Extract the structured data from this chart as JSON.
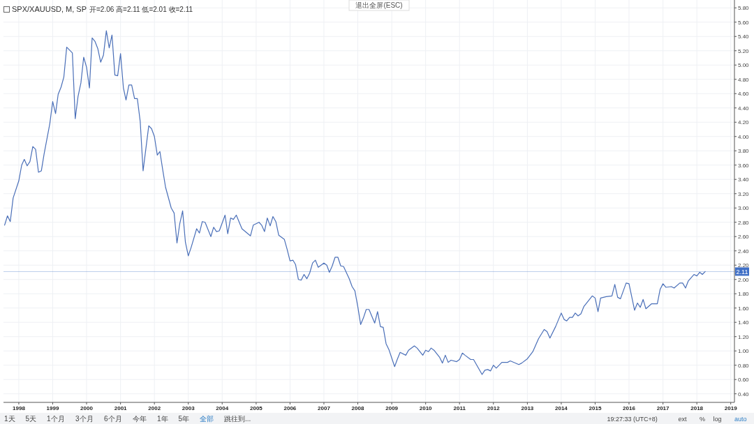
{
  "chart_data": {
    "type": "line",
    "title": "SPX/XAUUSD, M, SP",
    "subtitle": "开=2.06 高=2.11 低=2.01 收=2.11",
    "annotations": [
      "退出全屏(ESC)",
      "1天",
      "5天",
      "1个月",
      "3个月",
      "6个月",
      "今年",
      "1年",
      "5年",
      "全部",
      "跳往到...",
      "19:27:33 (UTC+8)",
      "ext",
      "%",
      "log",
      "auto"
    ],
    "series": [
      {
        "color": "#4a6fb8",
        "x": [
          "1997-08",
          "1997-09",
          "1997-10",
          "1997-11",
          "1998-01",
          "1998-02",
          "1998-03",
          "1998-04",
          "1998-05",
          "1998-06",
          "1998-07",
          "1998-08",
          "1998-09",
          "1998-10",
          "1998-12",
          "1999-01",
          "1999-02",
          "1999-03",
          "1999-04",
          "1999-05",
          "1999-06",
          "1999-08",
          "1999-09",
          "1999-10",
          "1999-11",
          "1999-12",
          "2000-01",
          "2000-02",
          "2000-03",
          "2000-04",
          "2000-05",
          "2000-06",
          "2000-07",
          "2000-08",
          "2000-09",
          "2000-10",
          "2000-11",
          "2000-12",
          "2001-01",
          "2001-02",
          "2001-03",
          "2001-04",
          "2001-05",
          "2001-06",
          "2001-07",
          "2001-08",
          "2001-09",
          "2001-11",
          "2001-12",
          "2002-01",
          "2002-02",
          "2002-03",
          "2002-04",
          "2002-05",
          "2002-07",
          "2002-08",
          "2002-09",
          "2002-10",
          "2002-11",
          "2002-12",
          "2003-01",
          "2003-02",
          "2003-04",
          "2003-05",
          "2003-06",
          "2003-07",
          "2003-09",
          "2003-10",
          "2003-11",
          "2003-12",
          "2004-02",
          "2004-03",
          "2004-04",
          "2004-05",
          "2004-06",
          "2004-08",
          "2004-11",
          "2004-12",
          "2005-02",
          "2005-03",
          "2005-04",
          "2005-05",
          "2005-06",
          "2005-07",
          "2005-08",
          "2005-09",
          "2005-11",
          "2005-12",
          "2006-01",
          "2006-02",
          "2006-03",
          "2006-04",
          "2006-05",
          "2006-06",
          "2006-07",
          "2006-08",
          "2006-09",
          "2006-10",
          "2006-11",
          "2007-01",
          "2007-02",
          "2007-03",
          "2007-04",
          "2007-05",
          "2007-06",
          "2007-07",
          "2007-08",
          "2007-10",
          "2007-11",
          "2007-12",
          "2008-01",
          "2008-02",
          "2008-03",
          "2008-04",
          "2008-05",
          "2008-07",
          "2008-08",
          "2008-09",
          "2008-10",
          "2008-11",
          "2008-12",
          "2009-02",
          "2009-03",
          "2009-04",
          "2009-06",
          "2009-07",
          "2009-09",
          "2009-10",
          "2009-12",
          "2010-01",
          "2010-02",
          "2010-03",
          "2010-04",
          "2010-06",
          "2010-07",
          "2010-08",
          "2010-09",
          "2010-10",
          "2010-12",
          "2011-01",
          "2011-02",
          "2011-03",
          "2011-05",
          "2011-06",
          "2011-09",
          "2011-10",
          "2011-11",
          "2011-12",
          "2012-01",
          "2012-02",
          "2012-04",
          "2012-06",
          "2012-07",
          "2012-10",
          "2012-11",
          "2013-01",
          "2013-03",
          "2013-05",
          "2013-07",
          "2013-08",
          "2013-09",
          "2013-11",
          "2014-01",
          "2014-02",
          "2014-03",
          "2014-04",
          "2014-05",
          "2014-06",
          "2014-07",
          "2014-08",
          "2014-09",
          "2014-12",
          "2015-01",
          "2015-02",
          "2015-03",
          "2015-05",
          "2015-07",
          "2015-08",
          "2015-09",
          "2015-10",
          "2015-12",
          "2016-01",
          "2016-03",
          "2016-04",
          "2016-05",
          "2016-06",
          "2016-07",
          "2016-09",
          "2016-11",
          "2016-12",
          "2017-01",
          "2017-02",
          "2017-04",
          "2017-05",
          "2017-07",
          "2017-08",
          "2017-09",
          "2017-10",
          "2017-12",
          "2018-01",
          "2018-02",
          "2018-03",
          "2018-04"
        ],
        "values": [
          2.76,
          2.89,
          2.81,
          3.14,
          3.38,
          3.6,
          3.68,
          3.59,
          3.65,
          3.86,
          3.82,
          3.5,
          3.52,
          3.76,
          4.18,
          4.49,
          4.32,
          4.59,
          4.69,
          4.83,
          5.25,
          5.17,
          4.25,
          4.56,
          4.75,
          5.11,
          4.97,
          4.68,
          5.38,
          5.33,
          5.23,
          5.04,
          5.14,
          5.48,
          5.24,
          5.42,
          4.86,
          4.85,
          5.16,
          4.68,
          4.51,
          4.72,
          4.72,
          4.53,
          4.53,
          4.21,
          3.52,
          4.15,
          4.11,
          4.0,
          3.74,
          3.79,
          3.53,
          3.29,
          3.0,
          2.93,
          2.51,
          2.78,
          2.96,
          2.52,
          2.33,
          2.45,
          2.71,
          2.65,
          2.81,
          2.8,
          2.6,
          2.73,
          2.67,
          2.68,
          2.9,
          2.64,
          2.86,
          2.84,
          2.9,
          2.71,
          2.61,
          2.76,
          2.8,
          2.76,
          2.67,
          2.86,
          2.75,
          2.88,
          2.81,
          2.62,
          2.56,
          2.42,
          2.26,
          2.27,
          2.21,
          2.0,
          1.99,
          2.07,
          2.01,
          2.09,
          2.23,
          2.27,
          2.17,
          2.23,
          2.2,
          2.1,
          2.19,
          2.31,
          2.31,
          2.19,
          2.18,
          2.01,
          1.9,
          1.84,
          1.62,
          1.37,
          1.46,
          1.58,
          1.58,
          1.39,
          1.55,
          1.34,
          1.33,
          1.1,
          1.02,
          0.78,
          0.88,
          0.98,
          0.94,
          1.01,
          1.07,
          1.04,
          0.94,
          1.01,
          0.99,
          1.04,
          1.01,
          0.91,
          0.83,
          0.94,
          0.84,
          0.87,
          0.85,
          0.88,
          0.97,
          0.94,
          0.88,
          0.88,
          0.67,
          0.73,
          0.74,
          0.72,
          0.8,
          0.76,
          0.84,
          0.84,
          0.86,
          0.81,
          0.83,
          0.89,
          0.99,
          1.17,
          1.3,
          1.27,
          1.18,
          1.34,
          1.53,
          1.44,
          1.42,
          1.47,
          1.47,
          1.53,
          1.49,
          1.52,
          1.62,
          1.77,
          1.74,
          1.55,
          1.74,
          1.76,
          1.77,
          1.93,
          1.75,
          1.73,
          1.95,
          1.94,
          1.57,
          1.67,
          1.61,
          1.72,
          1.59,
          1.66,
          1.66,
          1.86,
          1.94,
          1.89,
          1.9,
          1.88,
          1.95,
          1.95,
          1.88,
          1.98,
          2.07,
          2.05,
          2.1,
          2.07,
          2.11
        ]
      }
    ],
    "xlim": [
      "1997-07-20",
      "2019-02-10"
    ],
    "xticks": [
      "1998",
      "1999",
      "2000",
      "2001",
      "2002",
      "2003",
      "2004",
      "2005",
      "2006",
      "2007",
      "2008",
      "2009",
      "2010",
      "2011",
      "2012",
      "2013",
      "2014",
      "2015",
      "2016",
      "2017",
      "2018",
      "2019"
    ],
    "ylim": [
      0.28,
      5.91
    ],
    "yticks": [
      {
        "value": 0.4,
        "label": "0.40"
      },
      {
        "value": 0.6,
        "label": "0.60"
      },
      {
        "value": 0.8,
        "label": "0.80"
      },
      {
        "value": 1.0,
        "label": "1.00"
      },
      {
        "value": 1.2,
        "label": "1.20"
      },
      {
        "value": 1.4,
        "label": "1.40"
      },
      {
        "value": 1.6,
        "label": "1.60"
      },
      {
        "value": 1.8,
        "label": "1.80"
      },
      {
        "value": 2.0,
        "label": "2.00"
      },
      {
        "value": 2.2,
        "label": "2.20"
      },
      {
        "value": 2.4,
        "label": "2.40"
      },
      {
        "value": 2.6,
        "label": "2.60"
      },
      {
        "value": 2.8,
        "label": "2.80"
      },
      {
        "value": 3.0,
        "label": "3.00"
      },
      {
        "value": 3.2,
        "label": "3.20"
      },
      {
        "value": 3.4,
        "label": "3.40"
      },
      {
        "value": 3.6,
        "label": "3.60"
      },
      {
        "value": 3.8,
        "label": "3.80"
      },
      {
        "value": 4.0,
        "label": "4.00"
      },
      {
        "value": 4.2,
        "label": "4.20"
      },
      {
        "value": 4.4,
        "label": "4.40"
      },
      {
        "value": 4.6,
        "label": "4.60"
      },
      {
        "value": 4.8,
        "label": "4.80"
      },
      {
        "value": 5.0,
        "label": "5.00"
      },
      {
        "value": 5.2,
        "label": "5.20"
      },
      {
        "value": 5.4,
        "label": "5.40"
      },
      {
        "value": 5.6,
        "label": "5.60"
      },
      {
        "value": 5.8,
        "label": "5.80"
      }
    ],
    "ref_lines": [
      {
        "axis": "y",
        "value": 2.11,
        "label": "2.11",
        "color": "#3f6fc6"
      }
    ],
    "grid": true,
    "line_style": "solid"
  }
}
